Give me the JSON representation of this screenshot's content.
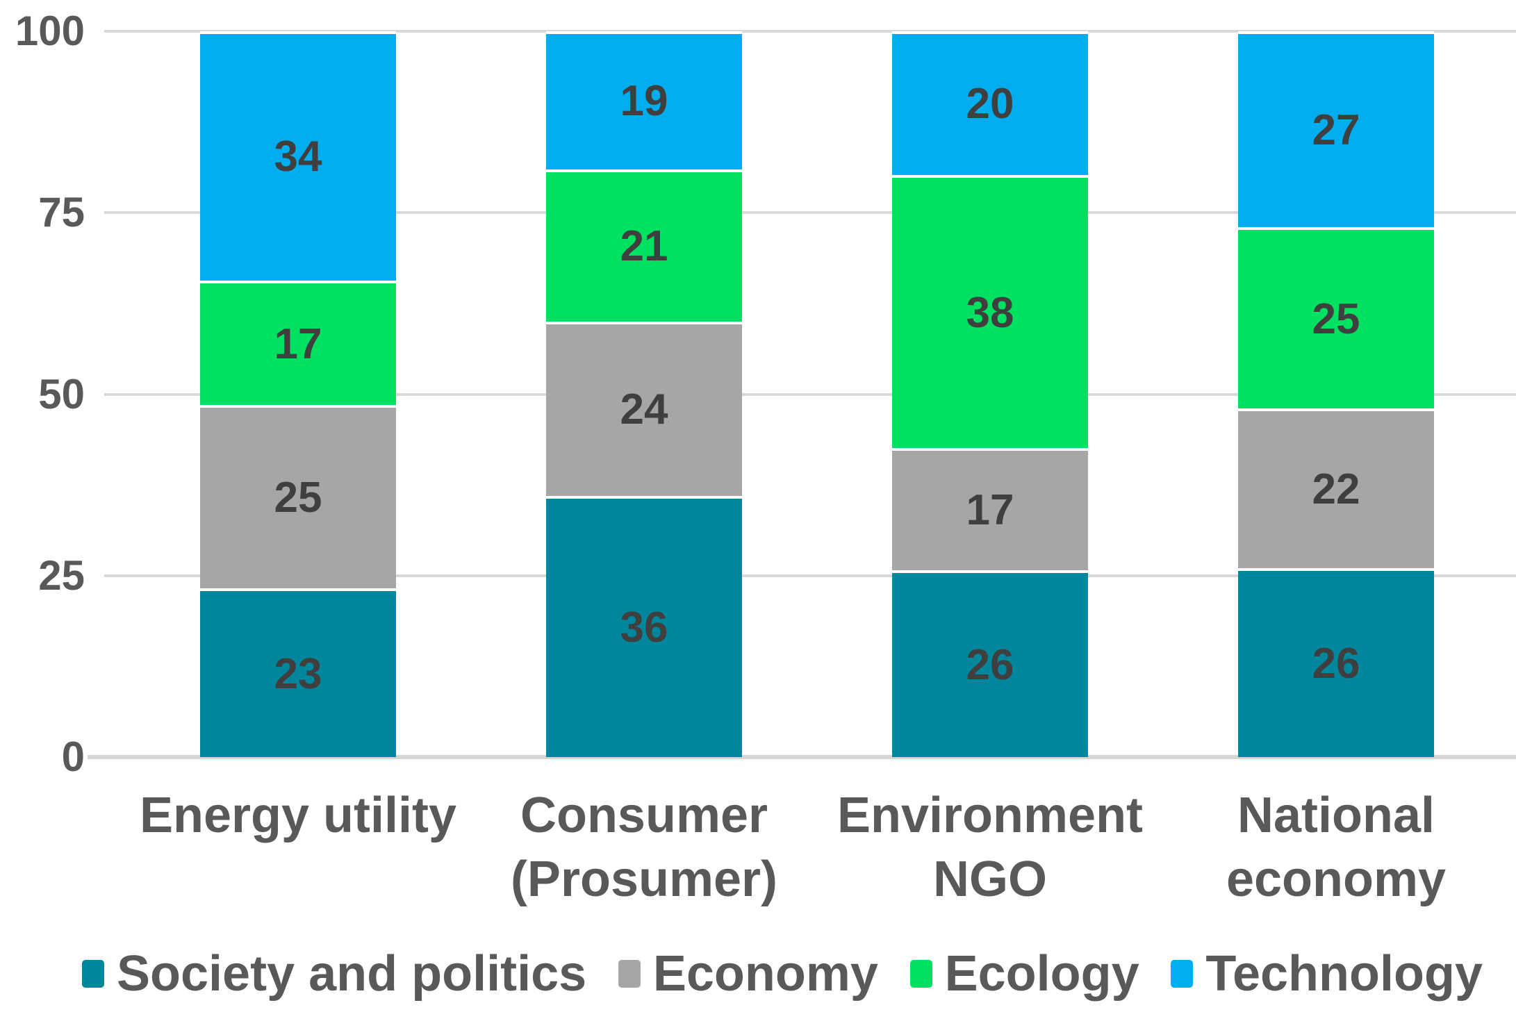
{
  "chart_data": {
    "type": "bar",
    "variant": "stacked-column-100",
    "title": "",
    "xlabel": "",
    "ylabel": "",
    "categories": [
      "Energy utility",
      "Consumer (Prosumer)",
      "Environment NGO",
      "National economy"
    ],
    "category_label_lines": [
      [
        "Energy utility"
      ],
      [
        "Consumer",
        "(Prosumer)"
      ],
      [
        "Environment",
        "NGO"
      ],
      [
        "National",
        "economy"
      ]
    ],
    "series": [
      {
        "name": "Society and politics",
        "color": "#00879E",
        "values": [
          23,
          36,
          26,
          26
        ]
      },
      {
        "name": "Economy",
        "color": "#A6A6A6",
        "values": [
          25,
          24,
          17,
          22
        ]
      },
      {
        "name": "Ecology",
        "color": "#00E161",
        "values": [
          17,
          21,
          38,
          25
        ]
      },
      {
        "name": "Technology",
        "color": "#00AEEF",
        "values": [
          34,
          19,
          20,
          27
        ]
      }
    ],
    "ylim": [
      0,
      100
    ],
    "y_ticks": [
      0,
      25,
      50,
      75,
      100
    ],
    "grid": true,
    "legend_position": "bottom"
  },
  "styles": {
    "gridline_color": "#D9D9D9",
    "baseline_color": "#D6D6D6",
    "axis_text_color": "#595959",
    "value_label_color": "#3F3F3F",
    "segment_divider_color": "#FFFFFF",
    "background_color": "#FFFFFF"
  }
}
